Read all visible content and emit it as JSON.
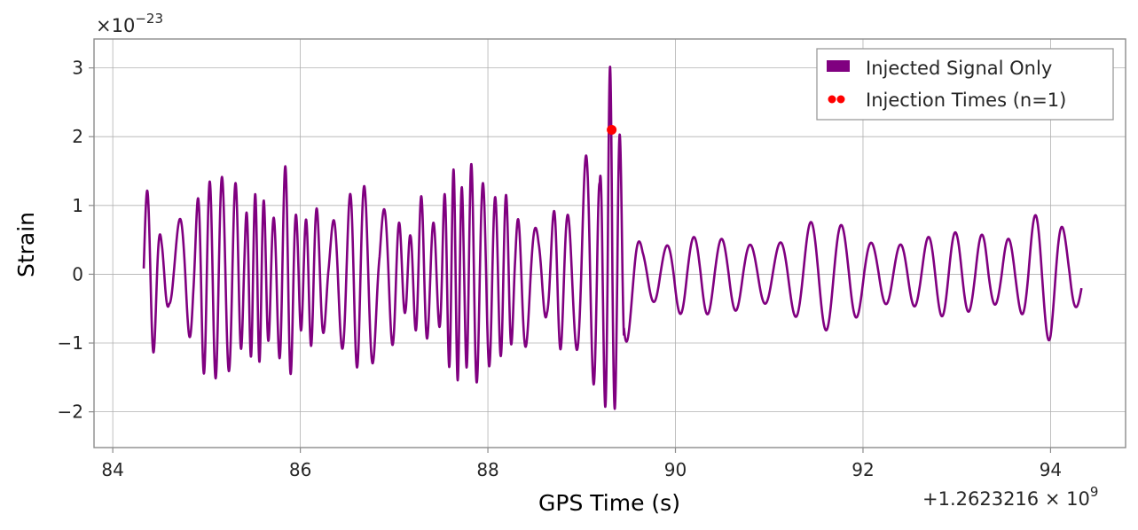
{
  "chart_data": {
    "type": "line",
    "xlabel": "GPS Time (s)",
    "ylabel": "Strain",
    "x_offset_text": "+1.2623216 × 10",
    "x_offset_exp": "9",
    "y_scale_text": "×10",
    "y_scale_exp": "−23",
    "xlim": [
      83.8,
      94.8
    ],
    "ylim": [
      -2.52,
      3.42
    ],
    "x_ticks": [
      84,
      86,
      88,
      90,
      92,
      94
    ],
    "x_tick_labels": [
      "84",
      "86",
      "88",
      "90",
      "92",
      "94"
    ],
    "y_ticks": [
      -2,
      -1,
      0,
      1,
      2,
      3
    ],
    "y_tick_labels": [
      "−2",
      "−1",
      "0",
      "1",
      "2",
      "3"
    ],
    "grid": true,
    "legend_position": "top-right",
    "series": [
      {
        "name": "Injected Signal Only",
        "kind": "line",
        "color": "#800080",
        "x_range": [
          84.33,
          94.33
        ],
        "envelope": [
          [
            84.33,
            1.45,
            -1.45
          ],
          [
            84.6,
            0.7,
            -0.8
          ],
          [
            85.05,
            1.5,
            -1.6
          ],
          [
            85.5,
            1.2,
            -1.3
          ],
          [
            85.85,
            1.6,
            -1.75
          ],
          [
            86.3,
            0.8,
            -0.9
          ],
          [
            86.65,
            1.4,
            -1.45
          ],
          [
            87.1,
            0.95,
            -1.0
          ],
          [
            87.5,
            1.35,
            -1.2
          ],
          [
            87.75,
            1.8,
            -1.9
          ],
          [
            88.0,
            1.25,
            -1.35
          ],
          [
            88.3,
            1.1,
            -1.2
          ],
          [
            88.7,
            1.0,
            -1.05
          ],
          [
            89.1,
            1.9,
            -1.7
          ],
          [
            89.32,
            3.12,
            -2.25
          ],
          [
            89.45,
            1.5,
            -1.3
          ],
          [
            89.65,
            0.55,
            -0.6
          ],
          [
            90.0,
            0.7,
            -0.8
          ],
          [
            90.4,
            0.5,
            -0.55
          ],
          [
            90.9,
            0.65,
            -0.7
          ],
          [
            91.4,
            0.8,
            -0.8
          ],
          [
            92.0,
            0.78,
            -0.85
          ],
          [
            92.6,
            0.5,
            -0.5
          ],
          [
            93.0,
            0.7,
            -0.7
          ],
          [
            93.3,
            0.95,
            -0.8
          ],
          [
            93.6,
            0.7,
            -0.6
          ],
          [
            94.0,
            1.02,
            -0.98
          ],
          [
            94.33,
            0.3,
            -0.55
          ]
        ]
      },
      {
        "name": "Injection Times (n=1)",
        "kind": "scatter",
        "color": "#ff0000",
        "points": [
          [
            89.32,
            2.1
          ]
        ]
      }
    ]
  }
}
